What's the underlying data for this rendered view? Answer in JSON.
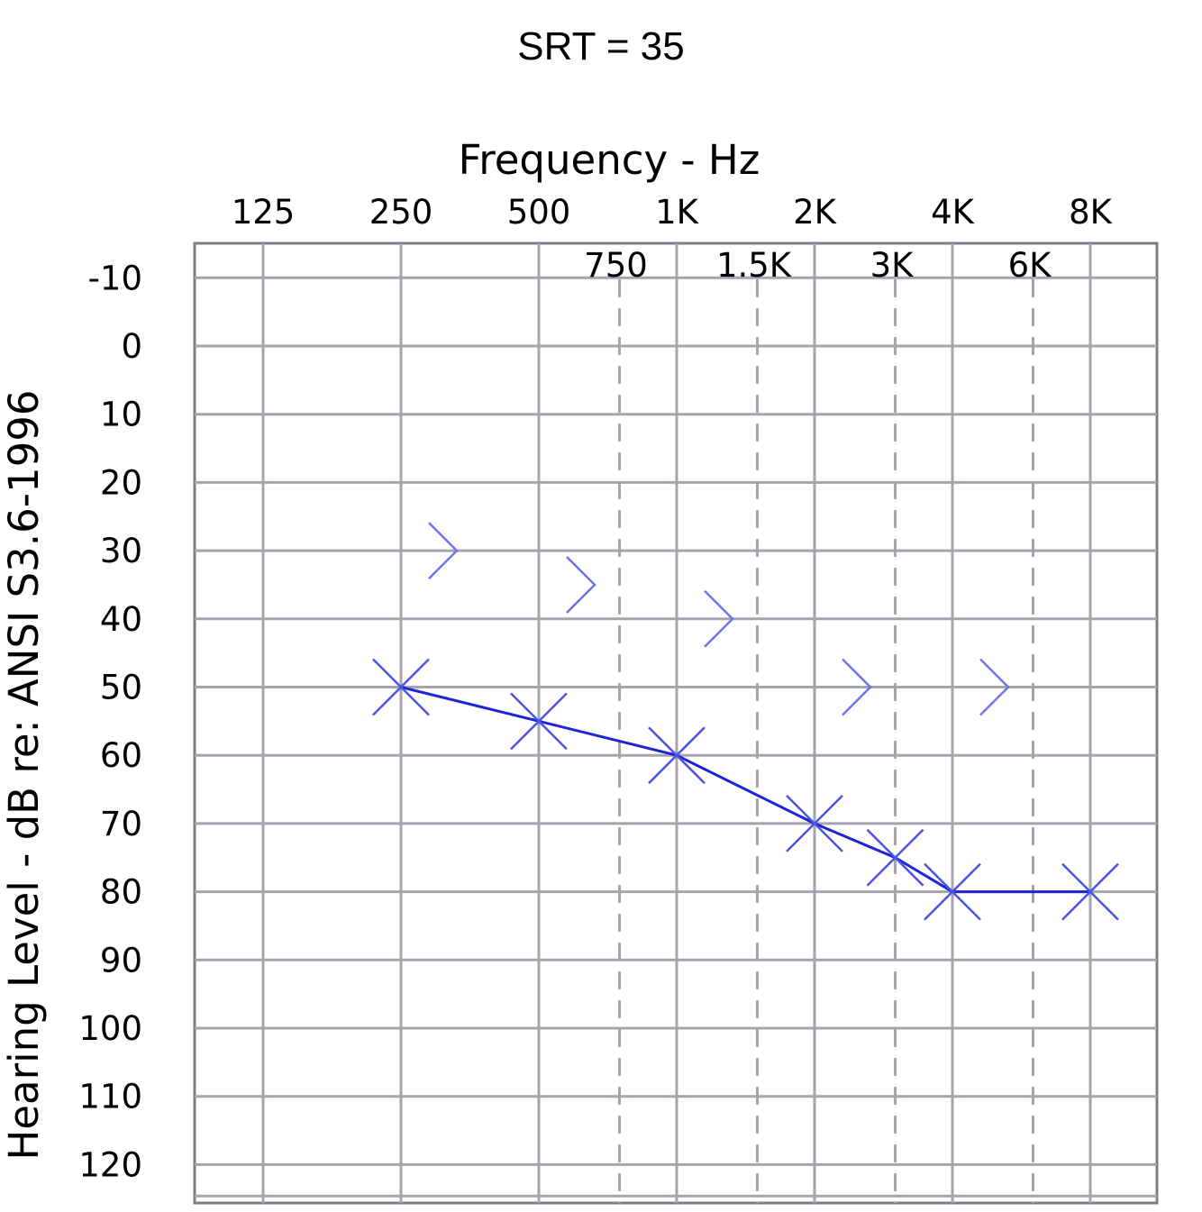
{
  "chart_data": {
    "type": "scatter",
    "title": "SRT = 35",
    "xlabel": "Frequency - Hz",
    "ylabel": "Hearing Level - dB   re: ANSI S3.6-1996",
    "x_scale": "log2",
    "y_inverted": true,
    "ylim": [
      -10,
      120
    ],
    "grid": true,
    "x_ticks_major": [
      {
        "value": 125,
        "label": "125"
      },
      {
        "value": 250,
        "label": "250"
      },
      {
        "value": 500,
        "label": "500"
      },
      {
        "value": 1000,
        "label": "1K"
      },
      {
        "value": 2000,
        "label": "2K"
      },
      {
        "value": 4000,
        "label": "4K"
      },
      {
        "value": 8000,
        "label": "8K"
      }
    ],
    "x_ticks_minor": [
      {
        "value": 750,
        "label": "750"
      },
      {
        "value": 1500,
        "label": "1.5K"
      },
      {
        "value": 3000,
        "label": "3K"
      },
      {
        "value": 6000,
        "label": "6K"
      }
    ],
    "y_ticks": [
      -10,
      0,
      10,
      20,
      30,
      40,
      50,
      60,
      70,
      80,
      90,
      100,
      110,
      120
    ],
    "series": [
      {
        "marker": "X",
        "connected": true,
        "color": "#1f24d8",
        "points": [
          {
            "x": 250,
            "y": 50
          },
          {
            "x": 500,
            "y": 55
          },
          {
            "x": 1000,
            "y": 60
          },
          {
            "x": 2000,
            "y": 70
          },
          {
            "x": 3000,
            "y": 75
          },
          {
            "x": 4000,
            "y": 80
          },
          {
            "x": 8000,
            "y": 80
          }
        ]
      },
      {
        "marker": ">",
        "connected": false,
        "color": "#6c74ee",
        "points": [
          {
            "x": 250,
            "y": 30
          },
          {
            "x": 500,
            "y": 35
          },
          {
            "x": 1000,
            "y": 40
          },
          {
            "x": 2000,
            "y": 50
          },
          {
            "x": 4000,
            "y": 50
          }
        ]
      }
    ]
  }
}
